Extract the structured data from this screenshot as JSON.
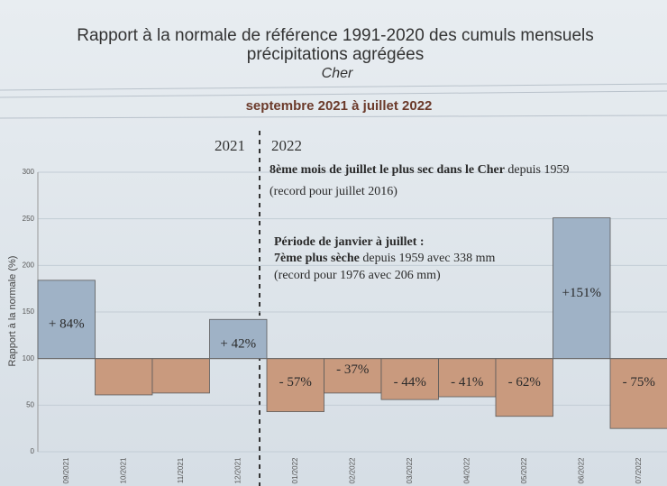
{
  "chart_data": {
    "type": "bar",
    "title": "Rapport à la normale de référence 1991-2020 des cumuls mensuels",
    "title_line2": "précipitations agrégées",
    "subtitle": "Cher",
    "period": "septembre 2021 à juillet 2022",
    "year_left": "2021",
    "year_right": "2022",
    "y_label": "Rapport à la normale (%)",
    "annotations": [
      {
        "bold": "8ème mois de juillet le plus sec dans le Cher",
        "text": " depuis 1959"
      },
      {
        "bold": "",
        "text": "(record pour juillet 2016)"
      },
      {
        "bold": "Période de janvier à juillet :",
        "text": ""
      },
      {
        "bold": "7ème plus sèche",
        "text": " depuis 1959 avec 338 mm"
      },
      {
        "bold": "",
        "text": "(record pour 1976 avec 206 mm)"
      }
    ],
    "categories": [
      "09/2021",
      "10/2021",
      "11/2021",
      "12/2021",
      "01/2022",
      "02/2022",
      "03/2022",
      "04/2022",
      "05/2022",
      "06/2022",
      "07/2022"
    ],
    "values": [
      184,
      61,
      63,
      142,
      43,
      63,
      56,
      59,
      38,
      251,
      25
    ],
    "value_labels": [
      "+ 84%",
      null,
      null,
      "+ 42%",
      "- 57%",
      "- 37%",
      "- 44%",
      "- 41%",
      "- 62%",
      "+151%",
      "- 75%"
    ],
    "baseline": 100,
    "color": "#9fb2c6",
    "negative_color": "#c99a7e",
    "ylim": [
      0,
      300
    ],
    "yticks": [
      0,
      50,
      100,
      150,
      200,
      250,
      300
    ],
    "grid": true
  }
}
